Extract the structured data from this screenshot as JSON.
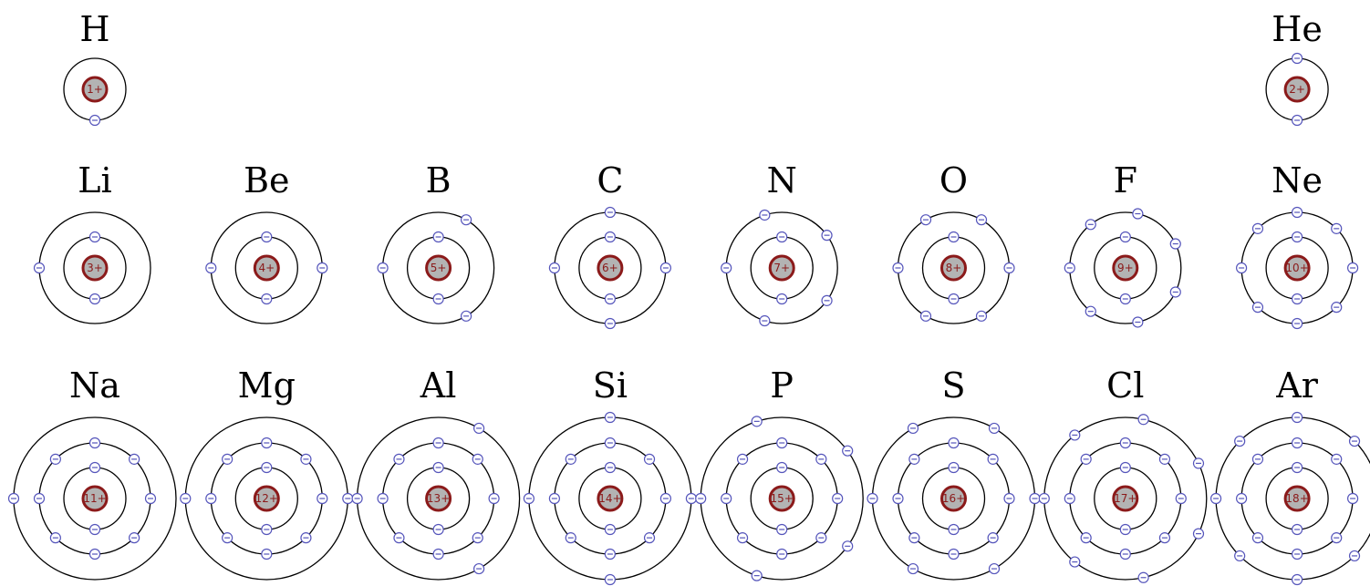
{
  "periods": [
    {
      "elements": [
        {
          "symbol": "H",
          "charge": "1+",
          "shells": [
            1
          ]
        },
        {
          "symbol": "He",
          "charge": "2+",
          "shells": [
            2
          ]
        }
      ]
    },
    {
      "elements": [
        {
          "symbol": "Li",
          "charge": "3+",
          "shells": [
            2,
            1
          ]
        },
        {
          "symbol": "Be",
          "charge": "4+",
          "shells": [
            2,
            2
          ]
        },
        {
          "symbol": "B",
          "charge": "5+",
          "shells": [
            2,
            3
          ]
        },
        {
          "symbol": "C",
          "charge": "6+",
          "shells": [
            2,
            4
          ]
        },
        {
          "symbol": "N",
          "charge": "7+",
          "shells": [
            2,
            5
          ]
        },
        {
          "symbol": "O",
          "charge": "8+",
          "shells": [
            2,
            6
          ]
        },
        {
          "symbol": "F",
          "charge": "9+",
          "shells": [
            2,
            7
          ]
        },
        {
          "symbol": "Ne",
          "charge": "10+",
          "shells": [
            2,
            8
          ]
        }
      ]
    },
    {
      "elements": [
        {
          "symbol": "Na",
          "charge": "11+",
          "shells": [
            2,
            8,
            1
          ]
        },
        {
          "symbol": "Mg",
          "charge": "12+",
          "shells": [
            2,
            8,
            2
          ]
        },
        {
          "symbol": "Al",
          "charge": "13+",
          "shells": [
            2,
            8,
            3
          ]
        },
        {
          "symbol": "Si",
          "charge": "14+",
          "shells": [
            2,
            8,
            4
          ]
        },
        {
          "symbol": "P",
          "charge": "15+",
          "shells": [
            2,
            8,
            5
          ]
        },
        {
          "symbol": "S",
          "charge": "16+",
          "shells": [
            2,
            8,
            6
          ]
        },
        {
          "symbol": "Cl",
          "charge": "17+",
          "shells": [
            2,
            8,
            7
          ]
        },
        {
          "symbol": "Ar",
          "charge": "18+",
          "shells": [
            2,
            8,
            8
          ]
        }
      ]
    }
  ]
}
